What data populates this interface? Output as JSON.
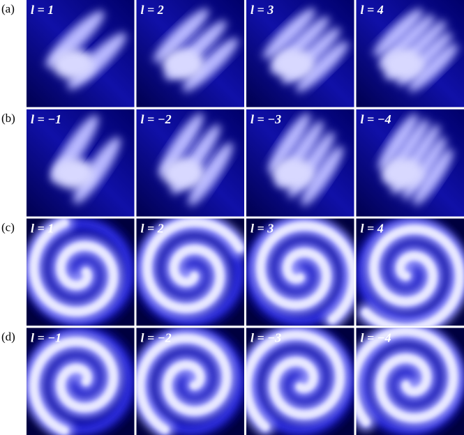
{
  "rows": [
    {
      "label": "(a)",
      "panels": [
        "l = 1",
        "l = 2",
        "l = 3",
        "l = 4"
      ]
    },
    {
      "label": "(b)",
      "panels": [
        "l = −1",
        "l = −2",
        "l = −3",
        "l = −4"
      ]
    },
    {
      "label": "(c)",
      "panels": [
        "l = 1",
        "l = 2",
        "l = 3",
        "l = 4"
      ]
    },
    {
      "label": "(d)",
      "panels": [
        "l = −1",
        "l = −2",
        "l = −3",
        "l = −4"
      ]
    }
  ]
}
